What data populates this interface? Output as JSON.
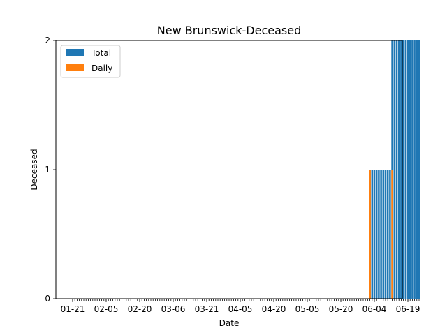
{
  "chart_data": {
    "type": "bar",
    "title": "New Brunswick-Deceased",
    "xlabel": "Date",
    "ylabel": "Deceased",
    "ylim": [
      0,
      2
    ],
    "yticks": [
      "0",
      "1",
      "2"
    ],
    "xtick_labels": [
      "01-21",
      "02-05",
      "02-20",
      "03-06",
      "03-21",
      "04-05",
      "04-20",
      "05-05",
      "05-20",
      "06-04",
      "06-19"
    ],
    "date_range": {
      "start": "01-21",
      "end": "06-25",
      "tick_interval_days": 15
    },
    "legend": {
      "position": "top-left",
      "entries": [
        "Total",
        "Daily"
      ]
    },
    "grid": false,
    "colors": {
      "Total": "#1f77b4",
      "Daily": "#ff7f0e"
    },
    "series": [
      {
        "name": "Total",
        "x": [
          "06-03",
          "06-04",
          "06-05",
          "06-06",
          "06-07",
          "06-08",
          "06-09",
          "06-10",
          "06-11",
          "06-12",
          "06-13",
          "06-14",
          "06-15",
          "06-16",
          "06-17",
          "06-18",
          "06-19",
          "06-20",
          "06-21",
          "06-22",
          "06-23",
          "06-24",
          "06-25"
        ],
        "values": [
          1,
          1,
          1,
          1,
          1,
          1,
          1,
          1,
          1,
          1,
          2,
          2,
          2,
          2,
          2,
          2,
          2,
          2,
          2,
          2,
          2,
          2,
          2
        ]
      },
      {
        "name": "Daily",
        "x": [
          "06-03",
          "06-13"
        ],
        "values": [
          1,
          1
        ]
      }
    ]
  }
}
